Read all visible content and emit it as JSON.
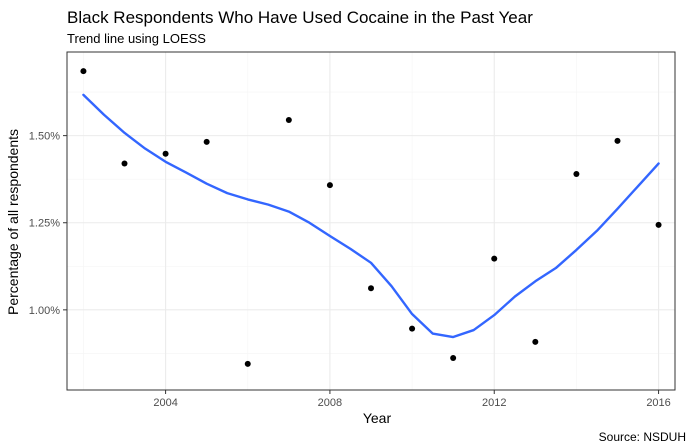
{
  "chart_data": {
    "type": "scatter",
    "title": "Black Respondents Who Have Used Cocaine in the Past Year",
    "subtitle": "Trend line using LOESS",
    "xlabel": "Year",
    "ylabel": "Percentage of all respondents",
    "caption": "Source: NSDUH",
    "xlim": [
      2001.6,
      2016.4
    ],
    "ylim": [
      0.0077,
      0.0174
    ],
    "x_ticks": [
      2004,
      2008,
      2012,
      2016
    ],
    "x_tick_labels": [
      "2004",
      "2008",
      "2012",
      "2016"
    ],
    "y_ticks": [
      0.01,
      0.0125,
      0.015
    ],
    "y_tick_labels": [
      "1.00%",
      "1.25%",
      "1.50%"
    ],
    "grid": true,
    "points": [
      {
        "x": 2002,
        "y": 0.01685
      },
      {
        "x": 2003,
        "y": 0.0142
      },
      {
        "x": 2004,
        "y": 0.01448
      },
      {
        "x": 2005,
        "y": 0.01482
      },
      {
        "x": 2006,
        "y": 0.00845
      },
      {
        "x": 2007,
        "y": 0.01545
      },
      {
        "x": 2008,
        "y": 0.01358
      },
      {
        "x": 2009,
        "y": 0.01062
      },
      {
        "x": 2010,
        "y": 0.00946
      },
      {
        "x": 2011,
        "y": 0.00862
      },
      {
        "x": 2012,
        "y": 0.01147
      },
      {
        "x": 2013,
        "y": 0.00908
      },
      {
        "x": 2014,
        "y": 0.0139
      },
      {
        "x": 2015,
        "y": 0.01485
      },
      {
        "x": 2016,
        "y": 0.01244
      }
    ],
    "trend_line": [
      {
        "x": 2002,
        "y": 0.01617
      },
      {
        "x": 2002.5,
        "y": 0.0156
      },
      {
        "x": 2003,
        "y": 0.01508
      },
      {
        "x": 2003.5,
        "y": 0.01463
      },
      {
        "x": 2004,
        "y": 0.01425
      },
      {
        "x": 2004.5,
        "y": 0.01394
      },
      {
        "x": 2005,
        "y": 0.01362
      },
      {
        "x": 2005.5,
        "y": 0.01335
      },
      {
        "x": 2006,
        "y": 0.01317
      },
      {
        "x": 2006.5,
        "y": 0.01302
      },
      {
        "x": 2007,
        "y": 0.01282
      },
      {
        "x": 2007.5,
        "y": 0.0125
      },
      {
        "x": 2008,
        "y": 0.01212
      },
      {
        "x": 2008.5,
        "y": 0.01175
      },
      {
        "x": 2009,
        "y": 0.01135
      },
      {
        "x": 2009.5,
        "y": 0.01068
      },
      {
        "x": 2010,
        "y": 0.00988
      },
      {
        "x": 2010.5,
        "y": 0.00932
      },
      {
        "x": 2011,
        "y": 0.00922
      },
      {
        "x": 2011.5,
        "y": 0.00942
      },
      {
        "x": 2012,
        "y": 0.00985
      },
      {
        "x": 2012.5,
        "y": 0.01038
      },
      {
        "x": 2013,
        "y": 0.01082
      },
      {
        "x": 2013.5,
        "y": 0.0112
      },
      {
        "x": 2014,
        "y": 0.01172
      },
      {
        "x": 2014.5,
        "y": 0.01227
      },
      {
        "x": 2015,
        "y": 0.0129
      },
      {
        "x": 2015.5,
        "y": 0.01355
      },
      {
        "x": 2016,
        "y": 0.0142
      }
    ],
    "point_color": "#000000",
    "line_color": "#3366ff",
    "grid_major_color": "#ebebeb",
    "grid_minor_color": "#f5f5f5",
    "panel_border_color": "#333333"
  }
}
